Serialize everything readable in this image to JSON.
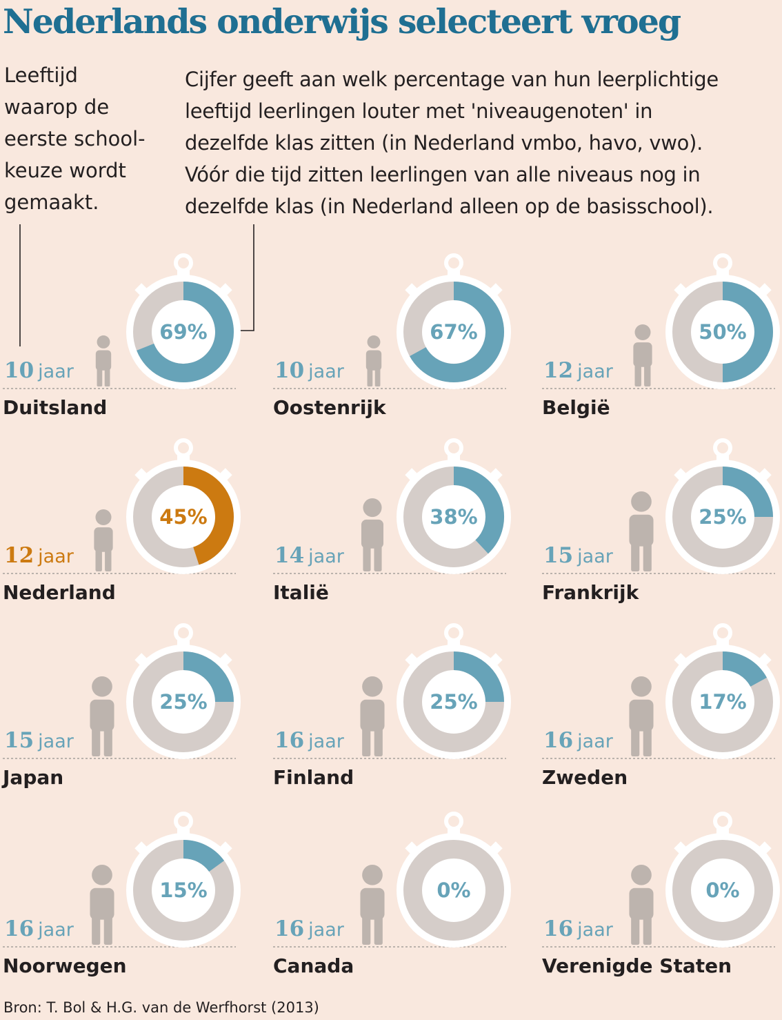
{
  "title": "Nederlands onderwijs selecteert vroeg",
  "note_left": "Leeftijd\nwaarop de\neerste school-\nkeuze wordt\ngemaakt.",
  "note_right": "Cijfer geeft aan welk percentage van hun leerplichtige\nleeftijd leerlingen louter met 'niveaugenoten' in\ndezelfde klas zitten (in Nederland vmbo, havo, vwo).\nVóór die tijd zitten leerlingen van alle niveaus nog in\ndezelfde klas (in Nederland alleen op de basisschool).",
  "source": "Bron: T. Bol & H.G. van de Werfhorst (2013)",
  "colors": {
    "background": "#f9e8de",
    "accent": "#67a3b8",
    "highlight": "#cc7a11",
    "neutral": "#d5cdc9",
    "figure": "#bdb4ae",
    "title": "#1f6f92",
    "text": "#231f20"
  },
  "chart_data": {
    "type": "donut-grid",
    "unit_suffix": "%",
    "age_unit": "jaar",
    "countries": [
      {
        "name": "Duitsland",
        "age": 10,
        "percent": 69,
        "highlight": false
      },
      {
        "name": "Oostenrijk",
        "age": 10,
        "percent": 67,
        "highlight": false
      },
      {
        "name": "België",
        "age": 12,
        "percent": 50,
        "highlight": false
      },
      {
        "name": "Nederland",
        "age": 12,
        "percent": 45,
        "highlight": true
      },
      {
        "name": "Italië",
        "age": 14,
        "percent": 38,
        "highlight": false
      },
      {
        "name": "Frankrijk",
        "age": 15,
        "percent": 25,
        "highlight": false
      },
      {
        "name": "Japan",
        "age": 15,
        "percent": 25,
        "highlight": false
      },
      {
        "name": "Finland",
        "age": 16,
        "percent": 25,
        "highlight": false
      },
      {
        "name": "Zweden",
        "age": 16,
        "percent": 17,
        "highlight": false
      },
      {
        "name": "Noorwegen",
        "age": 16,
        "percent": 15,
        "highlight": false
      },
      {
        "name": "Canada",
        "age": 16,
        "percent": 0,
        "highlight": false
      },
      {
        "name": "Verenigde Staten",
        "age": 16,
        "percent": 0,
        "highlight": false
      }
    ]
  }
}
